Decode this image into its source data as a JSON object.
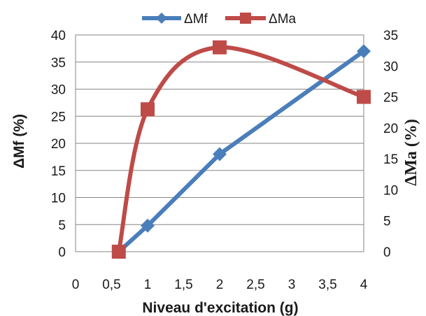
{
  "chart_data": {
    "type": "line",
    "x": [
      0.6,
      1,
      2,
      4
    ],
    "xlim": [
      0,
      4
    ],
    "x_ticks": [
      "0",
      "0,5",
      "1",
      "1,5",
      "2",
      "2,5",
      "3",
      "3,5",
      "4"
    ],
    "xlabel": "Niveau d'excitation (g)",
    "ylabel": "ΔMf (%)",
    "ylim": [
      0,
      40
    ],
    "y_ticks": [
      "0",
      "5",
      "10",
      "15",
      "20",
      "25",
      "30",
      "35",
      "40"
    ],
    "y2label": "ΔMa (%)",
    "y2lim": [
      0,
      35
    ],
    "y2_ticks": [
      "0",
      "5",
      "10",
      "15",
      "20",
      "25",
      "30",
      "35"
    ],
    "grid": "horizontal",
    "legend_position": "top",
    "series": [
      {
        "name": "ΔMf",
        "axis": "left",
        "color": "#4a7ebb",
        "marker": "diamond",
        "smooth": false,
        "values": [
          0,
          4.8,
          18,
          37
        ]
      },
      {
        "name": "ΔMa",
        "axis": "right",
        "color": "#be4b48",
        "marker": "square",
        "smooth": true,
        "values": [
          0,
          23,
          33,
          25
        ]
      }
    ]
  }
}
